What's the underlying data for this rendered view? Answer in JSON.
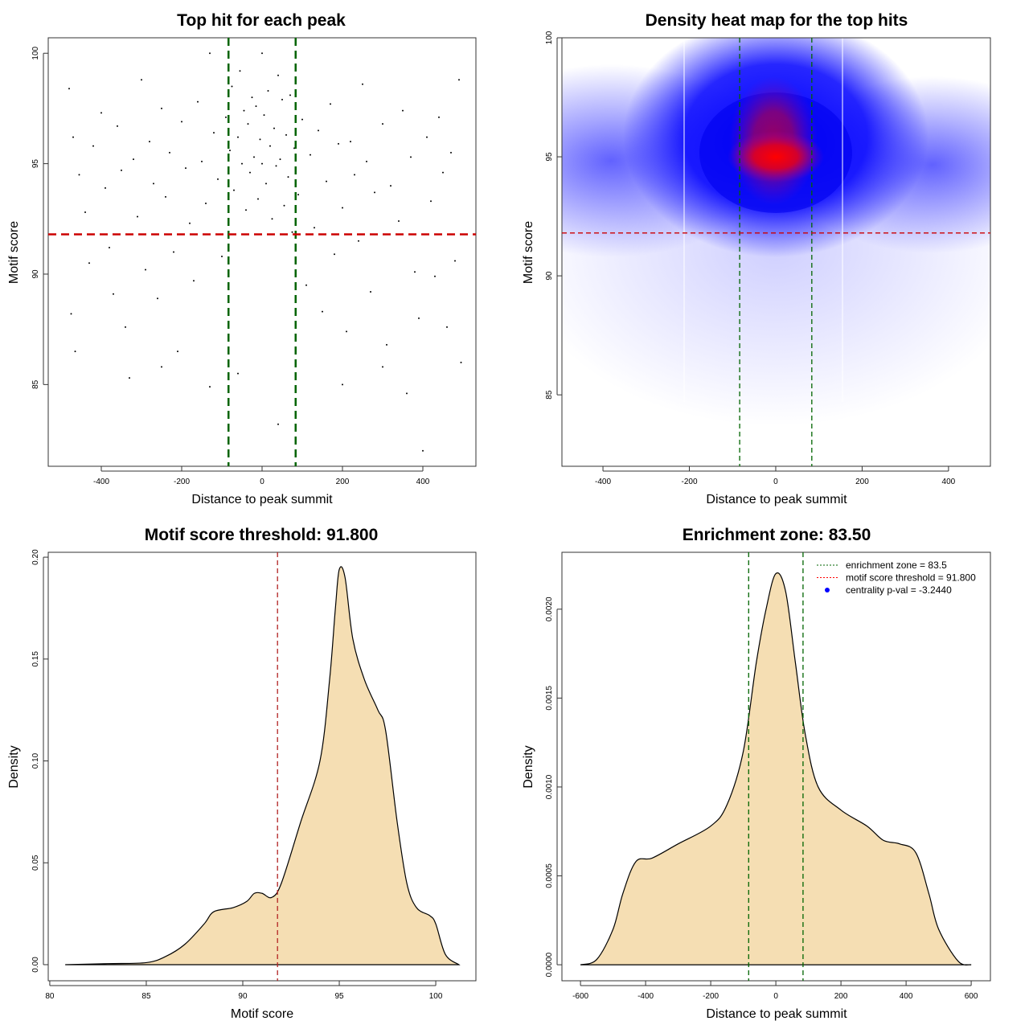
{
  "chart_data": [
    {
      "type": "scatter",
      "title": "Top hit for each peak",
      "xlabel": "Distance to peak summit",
      "ylabel": "Motif score",
      "xlim": [
        -532,
        532
      ],
      "ylim": [
        81.3,
        100.7
      ],
      "xticks": [
        -400,
        -200,
        0,
        200,
        400
      ],
      "yticks": [
        85,
        90,
        95,
        100
      ],
      "vlines": {
        "values": [
          -83.5,
          83.5
        ],
        "color": "#006400",
        "style": "dashed"
      },
      "hline": {
        "value": 91.8,
        "color": "#cc0000",
        "style": "dashed"
      },
      "point_color": "#000000",
      "points": [
        [
          -480,
          98.4
        ],
        [
          -470,
          96.2
        ],
        [
          -455,
          94.5
        ],
        [
          -440,
          92.8
        ],
        [
          -430,
          90.5
        ],
        [
          -475,
          88.2
        ],
        [
          -465,
          86.5
        ],
        [
          -420,
          95.8
        ],
        [
          -400,
          97.3
        ],
        [
          -390,
          93.9
        ],
        [
          -380,
          91.2
        ],
        [
          -370,
          89.1
        ],
        [
          -360,
          96.7
        ],
        [
          -350,
          94.7
        ],
        [
          -340,
          87.6
        ],
        [
          -320,
          95.2
        ],
        [
          -310,
          92.6
        ],
        [
          -300,
          98.8
        ],
        [
          -290,
          90.2
        ],
        [
          -280,
          96.0
        ],
        [
          -270,
          94.1
        ],
        [
          -260,
          88.9
        ],
        [
          -250,
          97.5
        ],
        [
          -240,
          93.5
        ],
        [
          -230,
          95.5
        ],
        [
          -220,
          91.0
        ],
        [
          -210,
          86.5
        ],
        [
          -200,
          96.9
        ],
        [
          -190,
          94.8
        ],
        [
          -180,
          92.3
        ],
        [
          -170,
          89.7
        ],
        [
          -160,
          97.8
        ],
        [
          -150,
          95.1
        ],
        [
          -140,
          93.2
        ],
        [
          -130,
          100
        ],
        [
          -120,
          96.4
        ],
        [
          -110,
          94.3
        ],
        [
          -100,
          90.8
        ],
        [
          -90,
          97.1
        ],
        [
          -80,
          95.6
        ],
        [
          -75,
          98.5
        ],
        [
          -70,
          93.8
        ],
        [
          -60,
          96.2
        ],
        [
          -55,
          99.2
        ],
        [
          -50,
          95.0
        ],
        [
          -45,
          97.4
        ],
        [
          -40,
          92.9
        ],
        [
          -35,
          96.8
        ],
        [
          -30,
          94.6
        ],
        [
          -25,
          98.0
        ],
        [
          -20,
          95.3
        ],
        [
          -15,
          97.6
        ],
        [
          -10,
          93.4
        ],
        [
          -5,
          96.1
        ],
        [
          0,
          100
        ],
        [
          0,
          95.0
        ],
        [
          5,
          97.2
        ],
        [
          10,
          94.1
        ],
        [
          15,
          98.3
        ],
        [
          20,
          95.8
        ],
        [
          25,
          92.5
        ],
        [
          30,
          96.6
        ],
        [
          35,
          94.9
        ],
        [
          40,
          99.0
        ],
        [
          45,
          95.2
        ],
        [
          50,
          97.9
        ],
        [
          55,
          93.1
        ],
        [
          60,
          96.3
        ],
        [
          65,
          94.4
        ],
        [
          70,
          98.1
        ],
        [
          75,
          91.9
        ],
        [
          80,
          95.7
        ],
        [
          90,
          93.6
        ],
        [
          100,
          97.0
        ],
        [
          110,
          89.5
        ],
        [
          120,
          95.4
        ],
        [
          130,
          92.1
        ],
        [
          140,
          96.5
        ],
        [
          150,
          88.3
        ],
        [
          160,
          94.2
        ],
        [
          170,
          97.7
        ],
        [
          180,
          90.9
        ],
        [
          190,
          95.9
        ],
        [
          200,
          93.0
        ],
        [
          210,
          87.4
        ],
        [
          220,
          96.0
        ],
        [
          230,
          94.5
        ],
        [
          240,
          91.5
        ],
        [
          250,
          98.6
        ],
        [
          260,
          95.1
        ],
        [
          270,
          89.2
        ],
        [
          280,
          93.7
        ],
        [
          300,
          96.8
        ],
        [
          310,
          86.8
        ],
        [
          320,
          94.0
        ],
        [
          340,
          92.4
        ],
        [
          350,
          97.4
        ],
        [
          360,
          84.6
        ],
        [
          370,
          95.3
        ],
        [
          380,
          90.1
        ],
        [
          390,
          88.0
        ],
        [
          400,
          82.0
        ],
        [
          410,
          96.2
        ],
        [
          420,
          93.3
        ],
        [
          430,
          89.9
        ],
        [
          440,
          97.1
        ],
        [
          450,
          94.6
        ],
        [
          460,
          87.6
        ],
        [
          470,
          95.5
        ],
        [
          480,
          90.6
        ],
        [
          490,
          98.8
        ],
        [
          495,
          86.0
        ],
        [
          -60,
          85.5
        ],
        [
          -250,
          85.8
        ],
        [
          -330,
          85.3
        ],
        [
          200,
          85.0
        ],
        [
          300,
          85.8
        ],
        [
          40,
          83.2
        ],
        [
          -130,
          84.9
        ]
      ]
    },
    {
      "type": "heatmap",
      "title": "Density heat map for the top hits",
      "xlabel": "Distance to peak summit",
      "ylabel": "Motif score",
      "xlim": [
        -495,
        497
      ],
      "ylim": [
        82.0,
        100.0
      ],
      "xticks": [
        -400,
        -200,
        0,
        200,
        400
      ],
      "yticks": [
        85,
        90,
        95,
        100
      ],
      "peak": {
        "x": 0,
        "y": 95
      },
      "colors": {
        "low": "#ffffff",
        "mid": "#0000ff",
        "high": "#ff0000"
      },
      "vlines": {
        "values": [
          -83.5,
          83.5
        ],
        "color": "#006400",
        "style": "dashed"
      },
      "hline": {
        "value": 91.8,
        "color": "#cc0000",
        "style": "dashed"
      }
    },
    {
      "type": "area",
      "title": "Motif score threshold: 91.800",
      "xlabel": "Motif score",
      "ylabel": "Density",
      "xlim": [
        79.92,
        102.08
      ],
      "ylim": [
        -0.0079,
        0.2024
      ],
      "xticks": [
        "80",
        "85",
        "90",
        "95",
        "100"
      ],
      "yticks": [
        "0.00",
        "0.05",
        "0.10",
        "0.15",
        "0.20"
      ],
      "fill": "#f5deb3",
      "vline": {
        "value": 91.8,
        "color": "#b22222",
        "style": "dashed"
      },
      "x": [
        80.8,
        83,
        85,
        86,
        87,
        88,
        88.5,
        89.5,
        90.2,
        90.6,
        91,
        91.5,
        92,
        93,
        94,
        94.5,
        94.8,
        95,
        95.3,
        95.7,
        96.3,
        97,
        97.4,
        98,
        98.5,
        99,
        99.7,
        100,
        100.5,
        101.2
      ],
      "y": [
        0,
        0.0005,
        0.001,
        0.004,
        0.01,
        0.02,
        0.026,
        0.028,
        0.031,
        0.035,
        0.035,
        0.033,
        0.04,
        0.07,
        0.1,
        0.14,
        0.175,
        0.194,
        0.19,
        0.16,
        0.14,
        0.125,
        0.115,
        0.07,
        0.04,
        0.028,
        0.024,
        0.02,
        0.005,
        0
      ]
    },
    {
      "type": "area",
      "title": "Enrichment zone: 83.50",
      "xlabel": "Distance to peak summit",
      "ylabel": "Density",
      "xlim": [
        -657,
        659
      ],
      "ylim": [
        -9e-05,
        0.00232
      ],
      "xticks": [
        "-600",
        "-400",
        "-200",
        "0",
        "200",
        "400",
        "600"
      ],
      "yticks": [
        "0.0000",
        "0.0005",
        "0.0010",
        "0.0015",
        "0.0020"
      ],
      "fill": "#f5deb3",
      "vlines": {
        "values": [
          -83.5,
          83.5
        ],
        "color": "#006400",
        "style": "dashed"
      },
      "legend": {
        "position": "top-right",
        "entries": [
          {
            "label": "enrichment zone = 83.5",
            "color": "#006400",
            "symbol": "dotted-line"
          },
          {
            "label": "motif score threshold = 91.800",
            "color": "#ff0000",
            "symbol": "dotted-line"
          },
          {
            "label": "centrality p-val = -3.2440",
            "color": "#0000ff",
            "symbol": "dot"
          }
        ]
      },
      "x": [
        -600,
        -550,
        -500,
        -470,
        -430,
        -380,
        -300,
        -200,
        -150,
        -100,
        -60,
        -30,
        0,
        30,
        60,
        90,
        130,
        200,
        280,
        330,
        380,
        430,
        470,
        500,
        560,
        600
      ],
      "y": [
        0,
        3e-05,
        0.0002,
        0.0004,
        0.00058,
        0.0006,
        0.00068,
        0.00078,
        0.0009,
        0.0012,
        0.0017,
        0.002,
        0.0022,
        0.0021,
        0.0017,
        0.0013,
        0.001,
        0.00087,
        0.00078,
        0.0007,
        0.00068,
        0.00063,
        0.0004,
        0.0002,
        2e-05,
        0
      ]
    }
  ]
}
